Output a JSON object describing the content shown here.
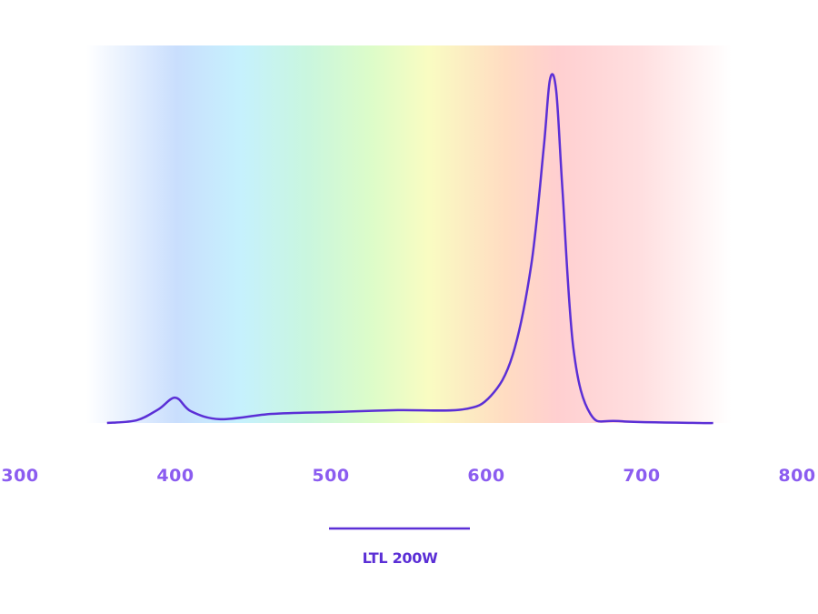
{
  "chart_data": {
    "type": "line",
    "x": [
      356,
      375,
      389,
      400,
      410,
      429,
      462,
      501,
      543,
      585,
      603,
      617,
      629,
      637,
      641,
      645,
      649,
      656,
      667,
      685,
      737,
      746
    ],
    "series": [
      {
        "name": "LTL 200W",
        "color": "#5b2fd6",
        "values": [
          0,
          0.7,
          3.6,
          6.7,
          3.1,
          1.0,
          2.4,
          2.9,
          3.4,
          3.6,
          7.2,
          18,
          42,
          73,
          91,
          88,
          62,
          20,
          2.4,
          0.5,
          0,
          0
        ]
      }
    ],
    "xlim": [
      300,
      800
    ],
    "xticks": [
      300,
      400,
      500,
      600,
      700,
      800
    ],
    "ylim": [
      0,
      100
    ]
  }
}
